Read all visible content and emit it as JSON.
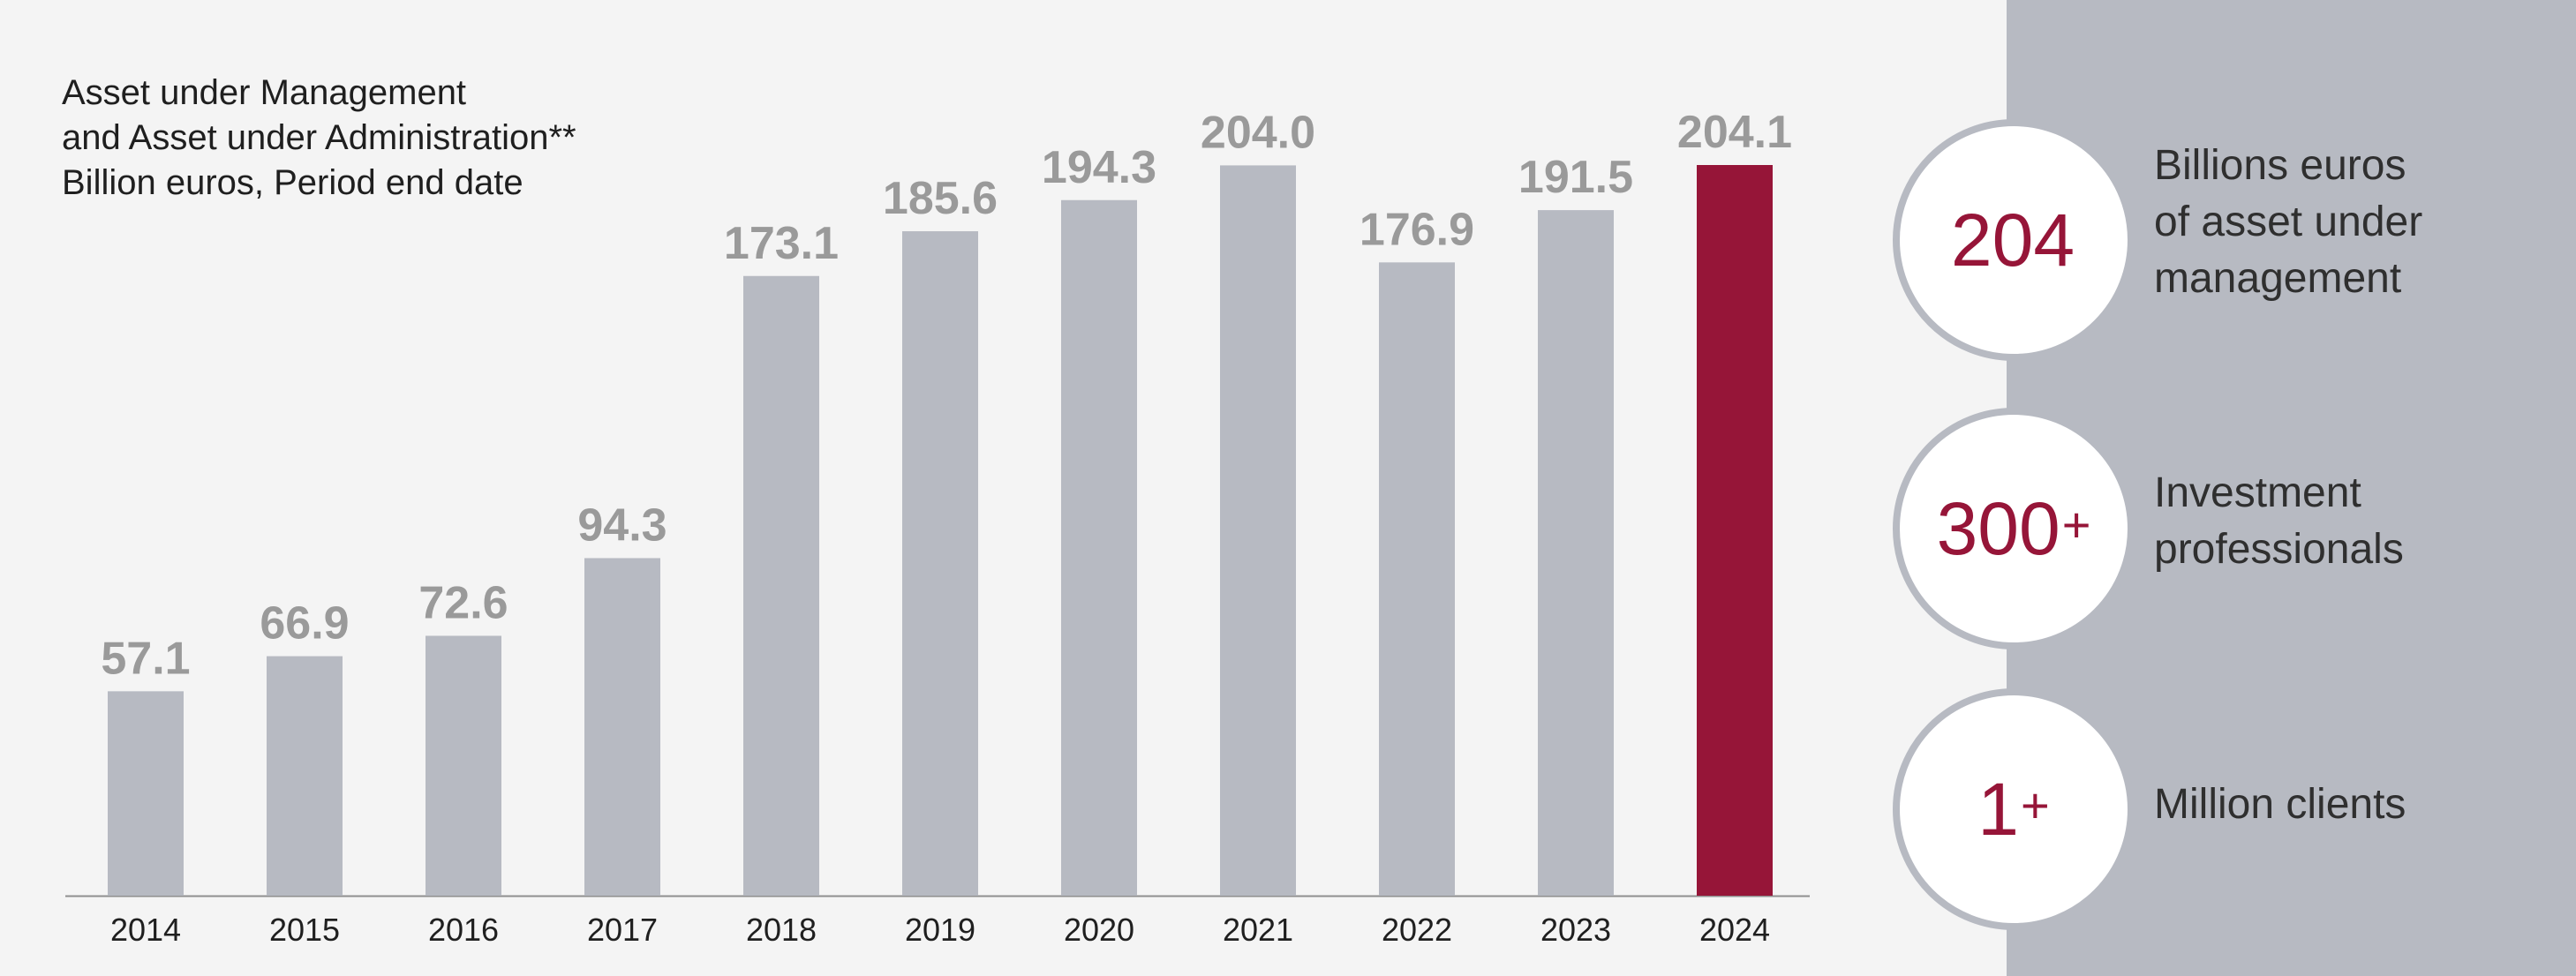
{
  "chart_data": {
    "type": "bar",
    "title_lines": [
      "Asset under Management",
      "and Asset under Administration**",
      "Billion euros, Period end date"
    ],
    "categories": [
      "2014",
      "2015",
      "2016",
      "2017",
      "2018",
      "2019",
      "2020",
      "2021",
      "2022",
      "2023",
      "2024"
    ],
    "values": [
      57.1,
      66.9,
      72.6,
      94.3,
      173.1,
      185.6,
      194.3,
      204.0,
      176.9,
      191.5,
      204.1
    ],
    "value_labels": [
      "57.1",
      "66.9",
      "72.6",
      "94.3",
      "173.1",
      "185.6",
      "194.3",
      "204.0",
      "176.9",
      "191.5",
      "204.1"
    ],
    "highlight_category": "2024",
    "ylim": [
      0,
      204.1
    ],
    "grid": false,
    "legend": "none"
  },
  "colors": {
    "bar": "#b7bac2",
    "highlight": "#961538",
    "value_label": "#9a9a9a",
    "panel": "#b7bac2",
    "accent_text": "#961538"
  },
  "stats": [
    {
      "value": "204",
      "plus": "",
      "lines": [
        "Billions euros",
        "of asset under",
        "management"
      ]
    },
    {
      "value": "300",
      "plus": "+",
      "lines": [
        "Investment",
        "professionals"
      ]
    },
    {
      "value": "1",
      "plus": "+",
      "lines": [
        "Million clients"
      ]
    }
  ]
}
